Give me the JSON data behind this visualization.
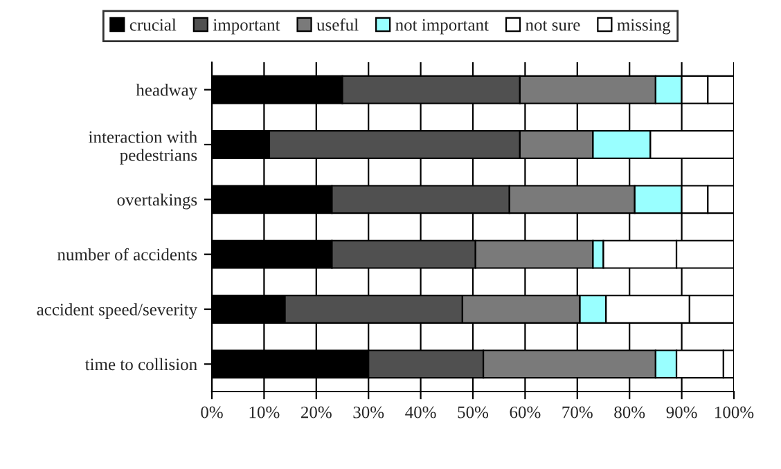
{
  "chart_data": {
    "type": "bar",
    "orientation": "horizontal",
    "stacked": true,
    "categories": [
      "headway",
      "interaction with\npedestrians",
      "overtakings",
      "number of accidents",
      "accident speed/severity",
      "time to collision"
    ],
    "series": [
      {
        "name": "crucial",
        "color": "#000000",
        "values": [
          25,
          11,
          23,
          23,
          14,
          30
        ]
      },
      {
        "name": "important",
        "color": "#505050",
        "values": [
          34,
          48,
          34,
          27.5,
          34,
          22
        ]
      },
      {
        "name": "useful",
        "color": "#7a7a7a",
        "values": [
          26,
          14,
          24,
          22.5,
          22.5,
          33
        ]
      },
      {
        "name": "not important",
        "color": "#99ffff",
        "values": [
          5,
          11,
          9,
          2,
          5,
          4
        ]
      },
      {
        "name": "not sure",
        "color": "#ffffff",
        "values": [
          5,
          16,
          5,
          14,
          16,
          9
        ]
      },
      {
        "name": "missing",
        "color": "#ffffff",
        "values": [
          5,
          0,
          5,
          11,
          8.5,
          2
        ]
      }
    ],
    "xlim": [
      0,
      100
    ],
    "xticks": [
      {
        "value": 0,
        "label": "0%"
      },
      {
        "value": 10,
        "label": "10%"
      },
      {
        "value": 20,
        "label": "20%"
      },
      {
        "value": 30,
        "label": "30%"
      },
      {
        "value": 40,
        "label": "40%"
      },
      {
        "value": 50,
        "label": "50%"
      },
      {
        "value": 60,
        "label": "60%"
      },
      {
        "value": 70,
        "label": "70%"
      },
      {
        "value": 80,
        "label": "80%"
      },
      {
        "value": 90,
        "label": "90%"
      },
      {
        "value": 100,
        "label": "100%"
      }
    ],
    "grid": "x",
    "legend": "top"
  }
}
